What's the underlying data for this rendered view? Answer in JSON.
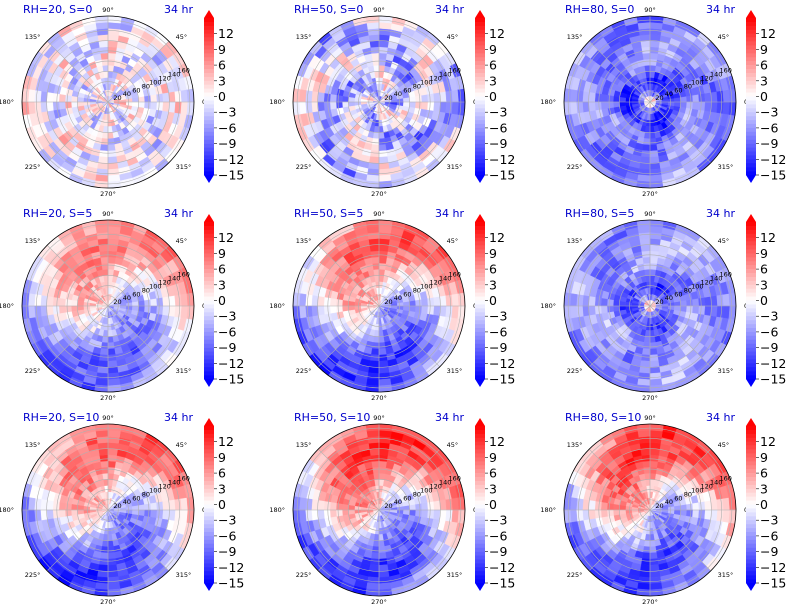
{
  "chart_data": {
    "type": "heatmap",
    "projection": "polar",
    "layout": {
      "rows": 3,
      "cols": 3
    },
    "time_label": "34 hr",
    "theta_ticks": [
      "0°",
      "45°",
      "90°",
      "135°",
      "180°",
      "225°",
      "270°",
      "315°"
    ],
    "r_ticks": [
      "20",
      "40",
      "60",
      "80",
      "100",
      "120",
      "140",
      "160"
    ],
    "colorbar": {
      "colormap": "bwr",
      "ticks": [
        "12",
        "9",
        "6",
        "3",
        "0",
        "−3",
        "−6",
        "−9",
        "−12",
        "−15"
      ],
      "range": [
        -15,
        15
      ],
      "extend": "both"
    },
    "colors": {
      "positive": "#ff0000",
      "zero": "#ffffff",
      "negative": "#0000ff",
      "title": "#0000cc"
    },
    "panels": [
      {
        "title": "RH=20, S=0",
        "time": "34 hr",
        "pattern": "noise",
        "mean": -0.5,
        "amplitude": 4,
        "speckle": 5
      },
      {
        "title": "RH=50, S=0",
        "time": "34 hr",
        "pattern": "spiral",
        "mean": -3,
        "amplitude": 4,
        "speckle": 5
      },
      {
        "title": "RH=80, S=0",
        "time": "34 hr",
        "pattern": "ring",
        "mean": -7,
        "amplitude": 6,
        "speckle": 3
      },
      {
        "title": "RH=20, S=5",
        "time": "34 hr",
        "pattern": "dipole",
        "mean": -1,
        "amplitude": 9,
        "speckle": 3
      },
      {
        "title": "RH=50, S=5",
        "time": "34 hr",
        "pattern": "dipole",
        "mean": -1,
        "amplitude": 11,
        "speckle": 3
      },
      {
        "title": "RH=80, S=5",
        "time": "34 hr",
        "pattern": "ring",
        "mean": -6,
        "amplitude": 5,
        "speckle": 3
      },
      {
        "title": "RH=20, S=10",
        "time": "34 hr",
        "pattern": "dipole",
        "mean": -1,
        "amplitude": 11,
        "speckle": 3
      },
      {
        "title": "RH=50, S=10",
        "time": "34 hr",
        "pattern": "dipole",
        "mean": 0,
        "amplitude": 12,
        "speckle": 3
      },
      {
        "title": "RH=80, S=10",
        "time": "34 hr",
        "pattern": "dipole",
        "mean": 0,
        "amplitude": 12,
        "speckle": 3
      }
    ]
  }
}
